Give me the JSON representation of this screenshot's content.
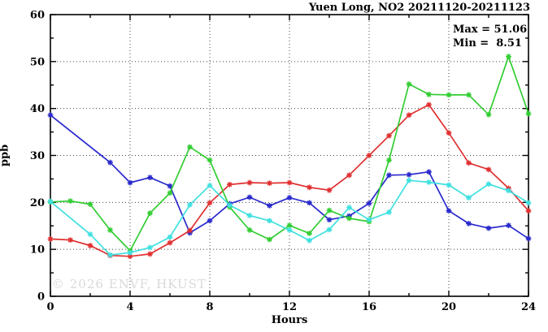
{
  "title": "Yuen Long, NO2 20211120-20211123",
  "stats": {
    "max_label": "Max = 51.06",
    "min_label": "Min =  8.51"
  },
  "watermark": "© 2026 ENVF, HKUST",
  "axes": {
    "xlabel": "Hours",
    "ylabel": "ppb"
  },
  "chart_data": {
    "type": "line",
    "title": "Yuen Long, NO2 20211120-20211123",
    "xlabel": "Hours",
    "ylabel": "ppb",
    "xlim": [
      0,
      24
    ],
    "ylim": [
      0,
      60
    ],
    "x_major_ticks": [
      0,
      4,
      8,
      12,
      16,
      20,
      24
    ],
    "x_minor_step": 2,
    "y_major_ticks": [
      0,
      10,
      20,
      30,
      40,
      50,
      60
    ],
    "y_minor_step": 5,
    "grid": "dotted-at-major-ticks",
    "legend_position": "none",
    "marker": "asterisk",
    "stats": {
      "max": 51.06,
      "min": 8.51
    },
    "x": [
      0,
      1,
      2,
      3,
      4,
      5,
      6,
      7,
      8,
      9,
      10,
      11,
      12,
      13,
      14,
      15,
      16,
      17,
      18,
      19,
      20,
      21,
      22,
      23,
      24
    ],
    "series": [
      {
        "name": "blue",
        "color": "#2929cc",
        "values": [
          38.6,
          null,
          null,
          28.5,
          24.2,
          25.3,
          23.5,
          13.5,
          16.1,
          19.7,
          21.1,
          19.3,
          21.0,
          19.9,
          16.3,
          17.1,
          19.8,
          25.8,
          25.9,
          26.5,
          18.2,
          15.5,
          14.5,
          15.1,
          12.3
        ]
      },
      {
        "name": "red",
        "color": "#e03030",
        "values": [
          12.2,
          12.0,
          10.8,
          8.7,
          8.51,
          9.0,
          11.4,
          14.0,
          19.9,
          23.8,
          24.2,
          24.1,
          24.2,
          23.2,
          22.6,
          25.8,
          30.0,
          34.2,
          38.6,
          40.8,
          34.8,
          28.4,
          27.0,
          23.0,
          18.2
        ]
      },
      {
        "name": "green",
        "color": "#32cd32",
        "values": [
          20.1,
          20.3,
          19.6,
          14.1,
          9.7,
          17.7,
          22.0,
          31.8,
          29.0,
          19.0,
          14.1,
          12.1,
          15.1,
          13.4,
          18.3,
          16.6,
          15.9,
          29.0,
          45.2,
          43.0,
          42.9,
          42.9,
          38.7,
          51.06,
          38.9
        ]
      },
      {
        "name": "cyan",
        "color": "#3fe0e0",
        "values": [
          20.2,
          null,
          13.2,
          8.8,
          9.3,
          10.4,
          12.6,
          19.5,
          23.6,
          19.4,
          17.2,
          16.1,
          14.1,
          11.9,
          14.2,
          18.9,
          16.3,
          17.9,
          24.7,
          24.3,
          23.7,
          21.0,
          23.9,
          22.5,
          19.9
        ]
      }
    ]
  }
}
